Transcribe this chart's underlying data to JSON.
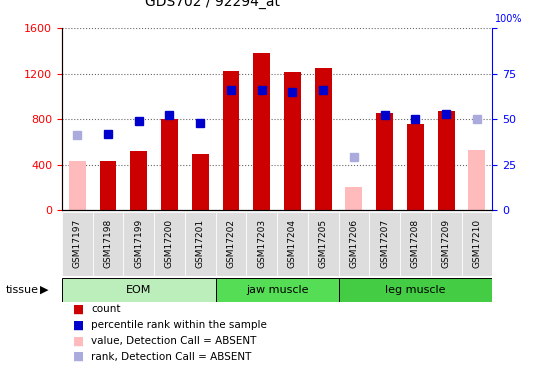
{
  "title": "GDS702 / 92294_at",
  "samples": [
    "GSM17197",
    "GSM17198",
    "GSM17199",
    "GSM17200",
    "GSM17201",
    "GSM17202",
    "GSM17203",
    "GSM17204",
    "GSM17205",
    "GSM17206",
    "GSM17207",
    "GSM17208",
    "GSM17209",
    "GSM17210"
  ],
  "count_values": [
    null,
    430,
    520,
    800,
    490,
    1220,
    1380,
    1210,
    1250,
    null,
    850,
    760,
    870,
    null
  ],
  "count_absent": [
    430,
    null,
    null,
    null,
    null,
    null,
    null,
    null,
    null,
    200,
    null,
    null,
    null,
    530
  ],
  "rank_values_pct": [
    null,
    42,
    49,
    52,
    48,
    66,
    66,
    65,
    66,
    null,
    52,
    50,
    53,
    null
  ],
  "rank_absent_pct": [
    41,
    null,
    null,
    null,
    null,
    null,
    null,
    null,
    null,
    29,
    null,
    null,
    null,
    50
  ],
  "count_color": "#cc0000",
  "count_absent_color": "#ffbbbb",
  "rank_color": "#0000cc",
  "rank_absent_color": "#aaaadd",
  "ylim_left": [
    0,
    1600
  ],
  "ylim_right": [
    0,
    100
  ],
  "left_ticks": [
    0,
    400,
    800,
    1200,
    1600
  ],
  "right_ticks": [
    0,
    25,
    50,
    75,
    100
  ],
  "groups": [
    {
      "label": "EOM",
      "start": 0,
      "end": 4
    },
    {
      "label": "jaw muscle",
      "start": 5,
      "end": 8
    },
    {
      "label": "leg muscle",
      "start": 9,
      "end": 13
    }
  ],
  "group_colors": [
    "#bbeebb",
    "#55dd55",
    "#44cc44"
  ],
  "tissue_label": "tissue",
  "legend_items": [
    {
      "label": "count",
      "color": "#cc0000"
    },
    {
      "label": "percentile rank within the sample",
      "color": "#0000cc"
    },
    {
      "label": "value, Detection Call = ABSENT",
      "color": "#ffbbbb"
    },
    {
      "label": "rank, Detection Call = ABSENT",
      "color": "#aaaadd"
    }
  ],
  "bar_width": 0.55,
  "marker_size": 6
}
